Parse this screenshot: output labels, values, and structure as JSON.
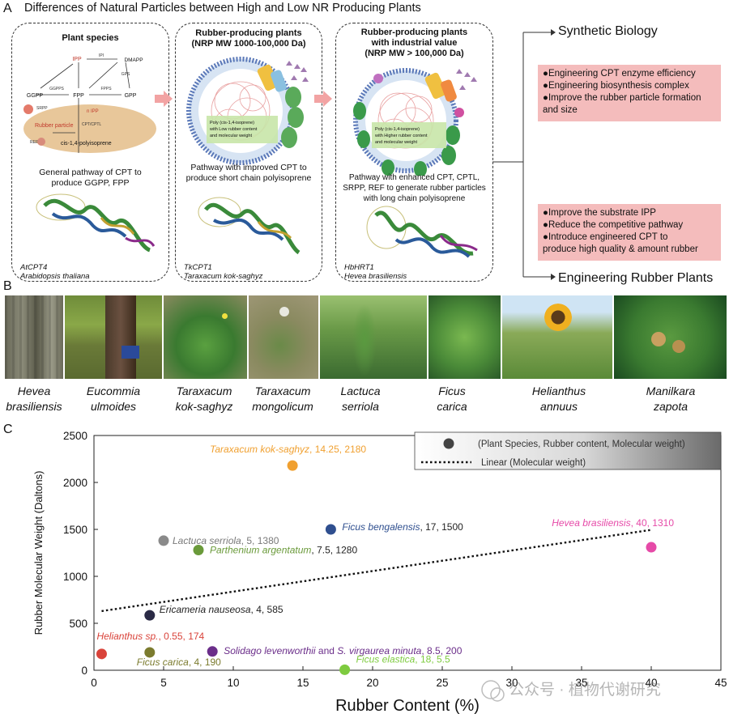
{
  "figure": {
    "title": "Differences of Natural Particles between High and Low NR Producing Plants"
  },
  "panel_a": {
    "letter": "A",
    "box1": {
      "heading": "Plant species",
      "pathway": {
        "ipp": "IPP",
        "ipi": "IPI",
        "dmapp": "DMAPP",
        "ggpps": "GGPPS",
        "fpps": "FPPS",
        "gps": "GPS",
        "ggpp": "GGPP",
        "fpp": "FPP",
        "gpp": "GPP",
        "srpp": "SRPP",
        "n_ipp": "n IPP",
        "rubber_particle": "Rubber particle",
        "cpt_cptl": "CPT/CPTL",
        "ref": "REF",
        "polyisoprene": "cis-1,4-polyisoprene"
      },
      "description": [
        "General pathway of CPT to",
        "produce GGPP, FPP"
      ],
      "label": [
        "AtCPT4",
        "Arabidopsis thaliana"
      ]
    },
    "box2": {
      "heading": [
        "Rubber-producing plants",
        "(NRP MW 1000-100,000 Da)"
      ],
      "particle_text": [
        "Poly (cis-1,4-isoprene)",
        "with Low rubber content",
        "and molecular weight"
      ],
      "description": [
        "Pathway with improved CPT to",
        "produce short chain polyisoprene"
      ],
      "label": [
        "TkCPT1",
        "Taraxacum kok-saghyz"
      ]
    },
    "box3": {
      "heading": [
        "Rubber-producing plants",
        "with industrial value",
        "(NRP MW > 100,000 Da)"
      ],
      "particle_text": [
        "Poly (cis-1,4-isoprene)",
        "with Higher rubber content",
        "and molecular weight"
      ],
      "description": [
        "Pathway with enhanced CPT, CPTL,",
        "SRPP, REF to generate rubber particles",
        "with long chain polyisoprene"
      ],
      "label": [
        "HbHRT1",
        "Hevea brasiliensis"
      ]
    },
    "synthetic_biology": {
      "title": "Synthetic Biology",
      "bullets": [
        "●Engineering CPT enzyme efficiency",
        "●Engineering biosynthesis complex",
        "●Improve the rubber particle formation",
        "and size"
      ]
    },
    "engineering_plants": {
      "title": "Engineering Rubber Plants",
      "bullets": [
        "●Improve the substrate IPP",
        "●Reduce the competitive pathway",
        "●Introduce engineered CPT to",
        "produce high quality & amount rubber"
      ]
    }
  },
  "panel_b": {
    "letter": "B",
    "species": [
      {
        "genus": "Hevea",
        "epithet": "brasiliensis"
      },
      {
        "genus": "Eucommia",
        "epithet": "ulmoides"
      },
      {
        "genus": "Taraxacum",
        "epithet": "kok-saghyz"
      },
      {
        "genus": "Taraxacum",
        "epithet": "mongolicum"
      },
      {
        "genus": "Lactuca",
        "epithet": "serriola"
      },
      {
        "genus": "Ficus",
        "epithet": "carica"
      },
      {
        "genus": "Helianthus",
        "epithet": "annuus"
      },
      {
        "genus": "Manilkara",
        "epithet": "zapota"
      }
    ]
  },
  "panel_c": {
    "letter": "C"
  },
  "chart_data": {
    "type": "scatter",
    "xlabel": "Rubber Content (%)",
    "ylabel": "Rubber Molecular Weight (Daltons)",
    "xlim": [
      0,
      45
    ],
    "ylim": [
      0,
      2500
    ],
    "xticks": [
      0,
      5,
      10,
      15,
      20,
      25,
      30,
      35,
      40,
      45
    ],
    "yticks": [
      0,
      500,
      1000,
      1500,
      2000,
      2500
    ],
    "legend": {
      "placement": "top-right",
      "marker_label": "(Plant Species, Rubber content, Molecular weight)",
      "line_label": "Linear (Molecular weight)"
    },
    "trendline": {
      "x": [
        0.55,
        40
      ],
      "y": [
        630,
        1495
      ]
    },
    "points": [
      {
        "name": "Taraxacum kok-saghyz",
        "x": 14.25,
        "y": 2180,
        "color": "#f0a030",
        "label_x": "14.25",
        "label_y": "2180",
        "style": "same"
      },
      {
        "name": "Ficus bengalensis",
        "x": 17,
        "y": 1500,
        "color": "#2f4f8f",
        "label_x": "17",
        "label_y": "1500",
        "style": "dark"
      },
      {
        "name": "Lactuca serriola",
        "x": 5,
        "y": 1380,
        "color": "#8a8a8a",
        "label_x": "5",
        "label_y": "1380",
        "style": "gray"
      },
      {
        "name": "Parthenium argentatum",
        "x": 7.5,
        "y": 1280,
        "color": "#6a9a3a",
        "label_x": "7.5",
        "label_y": "1280",
        "style": "dark"
      },
      {
        "name": "Hevea brasiliensis",
        "x": 40,
        "y": 1310,
        "color": "#e64aa8",
        "label_x": "40",
        "label_y": "1310",
        "style": "same"
      },
      {
        "name": "Ericameria nauseosa",
        "x": 4,
        "y": 585,
        "color": "#2a2a45",
        "label_x": "4",
        "label_y": "585",
        "style": "dark"
      },
      {
        "name": "Helianthus sp.",
        "x": 0.55,
        "y": 174,
        "color": "#d9433a",
        "label_x": "0.55",
        "label_y": "174",
        "style": "same"
      },
      {
        "name": "Ficus carica",
        "x": 4,
        "y": 190,
        "color": "#7b7b2e",
        "label_x": "4",
        "label_y": "190",
        "style": "same"
      },
      {
        "name": "Solidago levenworthii",
        "x": 8.5,
        "y": 200,
        "color": "#6b2e8a",
        "label_x": "8.5",
        "label_y": "200",
        "style": "same",
        "connector": "and",
        "name2": "S. virgaurea minuta"
      },
      {
        "name": "Ficus elastica",
        "x": 18,
        "y": 5.5,
        "color": "#7ecb3f",
        "label_x": "18",
        "label_y": "5.5",
        "style": "same"
      }
    ]
  },
  "watermark": {
    "text": "公众号 · 植物代谢研究"
  }
}
